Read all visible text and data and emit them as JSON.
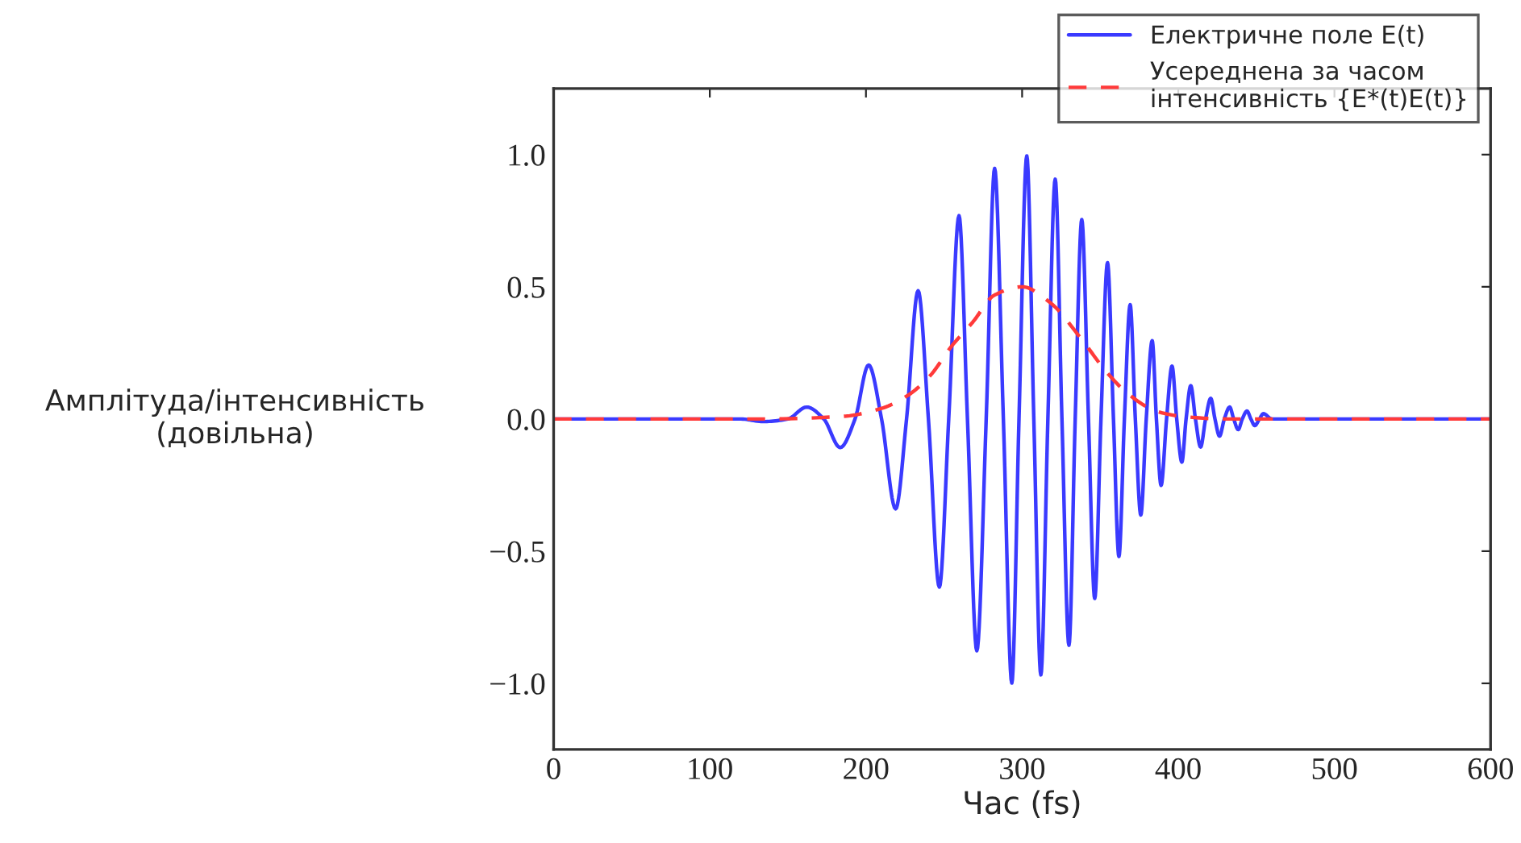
{
  "chart_data": {
    "type": "line",
    "xlabel": "Час (fs)",
    "ylabel": "Амплітуда/інтенсивність\n(довільна)",
    "xlim": [
      0,
      600
    ],
    "xticks": [
      0,
      100,
      200,
      300,
      400,
      500,
      600
    ],
    "ylim": [
      -1.25,
      1.25
    ],
    "yticks": [
      {
        "value": -1.0,
        "label": "−1.0"
      },
      {
        "value": -0.5,
        "label": "−0.5"
      },
      {
        "value": 0,
        "label": "0.0"
      },
      {
        "value": 0.5,
        "label": "0.5"
      },
      {
        "value": 1.0,
        "label": "1.0"
      }
    ],
    "grid": false,
    "legend": "top right",
    "marker": "none",
    "series": [
      {
        "name": "Електричне поле E(t)",
        "color": "#3a3aff",
        "line_style": "solid",
        "x": [
          0,
          120,
          134,
          150,
          162,
          173,
          183.5,
          193,
          201.7,
          210,
          219,
          226,
          233.4,
          240,
          247,
          253,
          259.6,
          265,
          271,
          277,
          282.4,
          288,
          293.4,
          298,
          303,
          307.5,
          312,
          316.5,
          321.2,
          325.5,
          330,
          334,
          338.2,
          342.5,
          346.5,
          350.5,
          354.7,
          358.5,
          362,
          365.5,
          369.2,
          372.5,
          376,
          379.5,
          383.3,
          386,
          389,
          392.5,
          396,
          399,
          402.3,
          405,
          408,
          411,
          414.3,
          417.5,
          420.8,
          423.5,
          426.4,
          429.5,
          432.9,
          435.5,
          438.4,
          441,
          444,
          446.5,
          449,
          452,
          454.5,
          460,
          480,
          600
        ],
        "values": [
          0,
          0,
          -0.01,
          0,
          0.045,
          0,
          -0.108,
          0,
          0.204,
          0,
          -0.34,
          0,
          0.485,
          0,
          -0.636,
          0,
          0.769,
          0,
          -0.877,
          0,
          0.948,
          0,
          -0.999,
          0,
          0.995,
          0,
          -0.968,
          0,
          0.907,
          0,
          -0.856,
          0,
          0.754,
          0,
          -0.679,
          0,
          0.591,
          0,
          -0.52,
          0,
          0.432,
          0,
          -0.363,
          0,
          0.296,
          0,
          -0.251,
          0,
          0.2,
          0,
          -0.163,
          0,
          0.126,
          0,
          -0.106,
          0,
          0.078,
          0,
          -0.065,
          0,
          0.045,
          0,
          -0.04,
          0,
          0.03,
          0,
          -0.025,
          0,
          0.02,
          0,
          0,
          0
        ]
      },
      {
        "name": "Усереднена за часом\nінтенсивність {E*(t)E(t)}",
        "color": "#ff3a3a",
        "line_style": "dashed",
        "x": [
          0,
          134,
          185.5,
          210,
          227,
          241,
          254.8,
          268.5,
          282.4,
          300,
          318,
          337.5,
          354.7,
          368.5,
          385.7,
          402,
          430,
          600
        ],
        "values": [
          0,
          0,
          0.01,
          0.04,
          0.09,
          0.163,
          0.275,
          0.367,
          0.469,
          0.5,
          0.44,
          0.306,
          0.173,
          0.092,
          0.03,
          0.01,
          0,
          0
        ]
      }
    ]
  }
}
